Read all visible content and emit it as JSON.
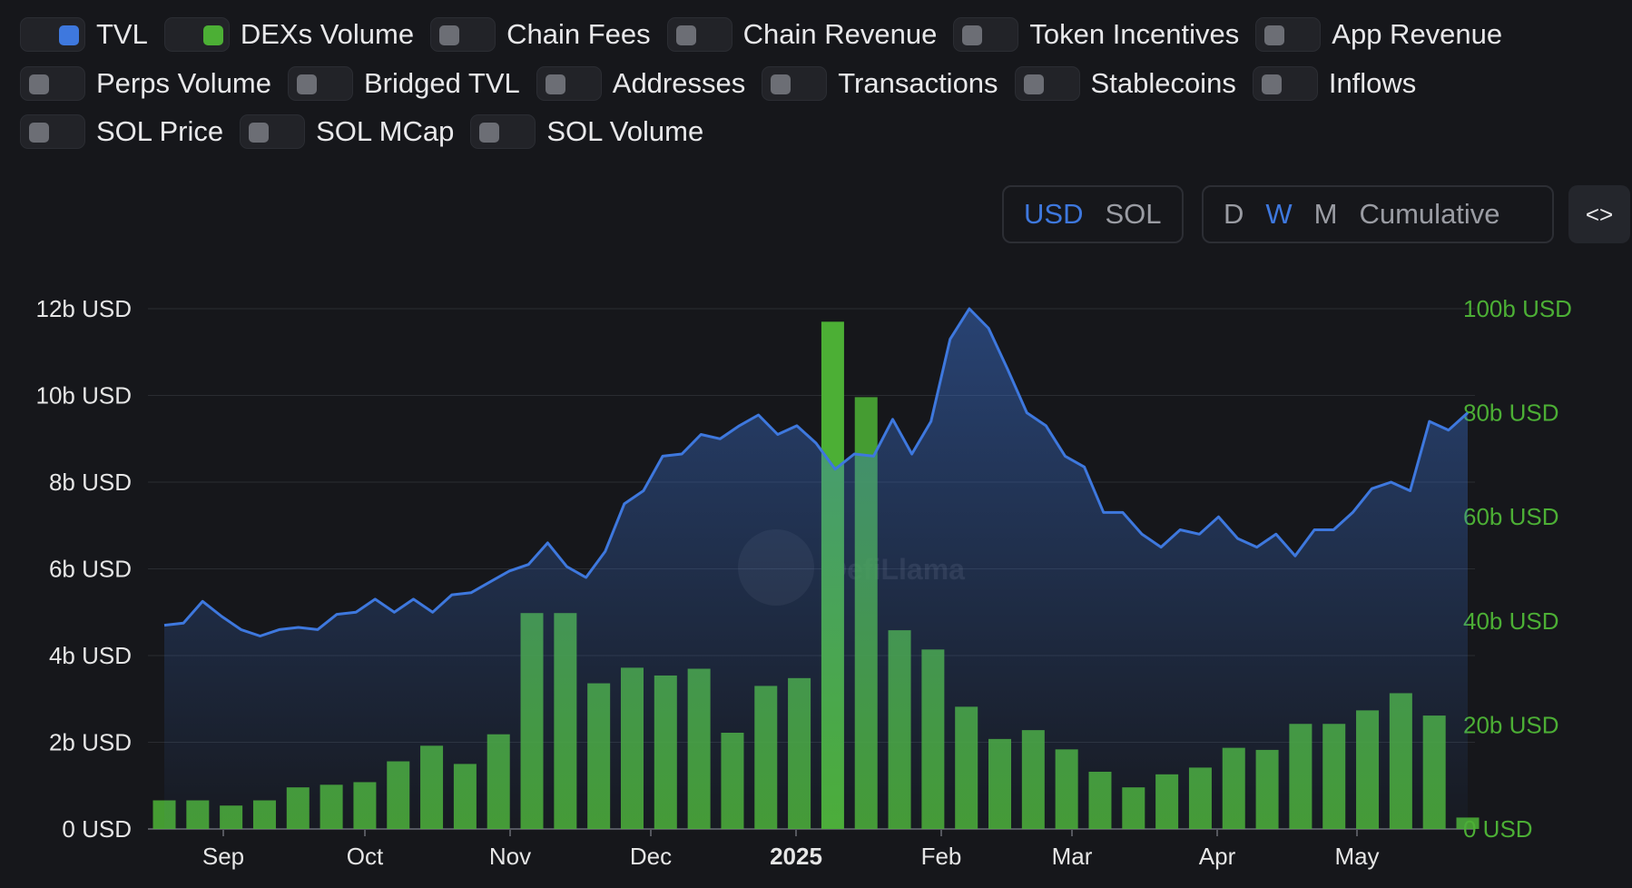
{
  "toggles": [
    {
      "label": "TVL",
      "on": true,
      "color": "#3e78de"
    },
    {
      "label": "DEXs Volume",
      "on": true,
      "color": "#4caf35"
    },
    {
      "label": "Chain Fees",
      "on": false
    },
    {
      "label": "Chain Revenue",
      "on": false
    },
    {
      "label": "Token Incentives",
      "on": false
    },
    {
      "label": "App Revenue",
      "on": false
    },
    {
      "label": "Perps Volume",
      "on": false
    },
    {
      "label": "Bridged TVL",
      "on": false
    },
    {
      "label": "Addresses",
      "on": false
    },
    {
      "label": "Transactions",
      "on": false
    },
    {
      "label": "Stablecoins",
      "on": false
    },
    {
      "label": "Inflows",
      "on": false
    },
    {
      "label": "SOL Price",
      "on": false
    },
    {
      "label": "SOL MCap",
      "on": false
    },
    {
      "label": "SOL Volume",
      "on": false
    }
  ],
  "currency": {
    "options": [
      "USD",
      "SOL"
    ],
    "selected": "USD"
  },
  "period": {
    "options": [
      "D",
      "W",
      "M",
      "Cumulative"
    ],
    "selected": "W"
  },
  "embed_label": "<>",
  "watermark": "DefiLlama",
  "colors": {
    "tvl": "#3e78de",
    "volume": "#4caf35",
    "bg": "#16171b",
    "grid": "#2a2c31"
  },
  "chart_data": {
    "type": "line+bar",
    "x_ticks": [
      "Sep",
      "Oct",
      "Nov",
      "Dec",
      "2025",
      "Feb",
      "Mar",
      "Apr",
      "May"
    ],
    "y_left_ticks": [
      "0 USD",
      "2b USD",
      "4b USD",
      "6b USD",
      "8b USD",
      "10b USD",
      "12b USD"
    ],
    "y_right_ticks": [
      "0 USD",
      "20b USD",
      "40b USD",
      "60b USD",
      "80b USD",
      "100b USD"
    ],
    "y_left_range": [
      0,
      12
    ],
    "y_right_range": [
      0,
      100
    ],
    "grid": true,
    "series": [
      {
        "name": "TVL",
        "unit": "b USD",
        "axis": "left",
        "type": "area",
        "values": [
          4.7,
          4.75,
          5.25,
          4.9,
          4.6,
          4.45,
          4.6,
          4.65,
          4.6,
          4.95,
          5.0,
          5.3,
          5.0,
          5.3,
          5.0,
          5.4,
          5.45,
          5.7,
          5.95,
          6.1,
          6.6,
          6.05,
          5.8,
          6.4,
          7.5,
          7.8,
          8.6,
          8.65,
          9.1,
          9.0,
          9.3,
          9.55,
          9.1,
          9.3,
          8.9,
          8.3,
          8.65,
          8.6,
          9.45,
          8.65,
          9.4,
          11.3,
          12.0,
          11.55,
          10.6,
          9.6,
          9.3,
          8.6,
          8.35,
          7.3,
          7.3,
          6.8,
          6.5,
          6.9,
          6.8,
          7.2,
          6.7,
          6.5,
          6.8,
          6.3,
          6.9,
          6.9,
          7.3,
          7.85,
          8.0,
          7.8,
          9.4,
          9.2,
          9.6
        ]
      },
      {
        "name": "DEXs Volume",
        "unit": "b USD",
        "axis": "right",
        "type": "bar",
        "values": [
          5.5,
          5.5,
          4.5,
          5.5,
          8,
          8.5,
          9,
          13,
          16,
          12.5,
          18.2,
          41.5,
          41.5,
          28,
          31,
          29.5,
          30.8,
          18.5,
          27.5,
          29,
          97.5,
          83,
          38.2,
          34.5,
          23.5,
          17.3,
          19,
          15.3,
          11,
          8,
          10.5,
          11.8,
          15.6,
          15.2,
          20.2,
          20.2,
          22.8,
          26.1,
          21.8,
          2.2
        ]
      }
    ]
  }
}
